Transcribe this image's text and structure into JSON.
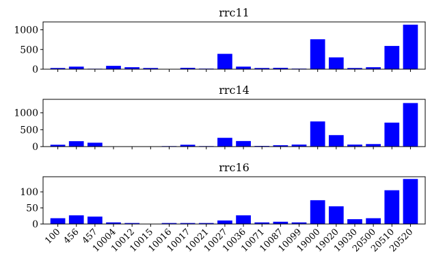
{
  "chart_data": [
    {
      "type": "bar",
      "title": "rrc11",
      "categories": [
        "100",
        "456",
        "457",
        "10004",
        "10012",
        "10015",
        "10016",
        "10017",
        "10021",
        "10027",
        "10036",
        "10071",
        "10087",
        "10099",
        "19000",
        "19020",
        "19030",
        "20500",
        "20510",
        "20520"
      ],
      "values": [
        30,
        65,
        12,
        85,
        50,
        30,
        5,
        35,
        15,
        390,
        65,
        30,
        35,
        15,
        760,
        300,
        30,
        50,
        590,
        1130
      ],
      "yticks": [
        0,
        500,
        1000
      ],
      "ylim": [
        0,
        1200
      ],
      "color": "#0000ff"
    },
    {
      "type": "bar",
      "title": "rrc14",
      "categories": [
        "100",
        "456",
        "457",
        "10004",
        "10012",
        "10015",
        "10016",
        "10017",
        "10021",
        "10027",
        "10036",
        "10071",
        "10087",
        "10099",
        "19000",
        "19020",
        "19030",
        "20500",
        "20510",
        "20520"
      ],
      "values": [
        55,
        160,
        115,
        0,
        0,
        0,
        15,
        55,
        15,
        260,
        165,
        20,
        40,
        60,
        745,
        340,
        60,
        75,
        710,
        1290
      ],
      "yticks": [
        0,
        500,
        1000
      ],
      "ylim": [
        0,
        1400
      ],
      "color": "#0000ff"
    },
    {
      "type": "bar",
      "title": "rrc16",
      "categories": [
        "100",
        "456",
        "457",
        "10004",
        "10012",
        "10015",
        "10016",
        "10017",
        "10021",
        "10027",
        "10036",
        "10071",
        "10087",
        "10099",
        "19000",
        "19020",
        "19030",
        "20500",
        "20510",
        "20520"
      ],
      "values": [
        18,
        27,
        23,
        5,
        3,
        1,
        3,
        3,
        3,
        11,
        27,
        5,
        7,
        5,
        74,
        55,
        15,
        18,
        105,
        140
      ],
      "yticks": [
        0,
        50,
        100
      ],
      "ylim": [
        0,
        147
      ],
      "color": "#0000ff"
    }
  ]
}
